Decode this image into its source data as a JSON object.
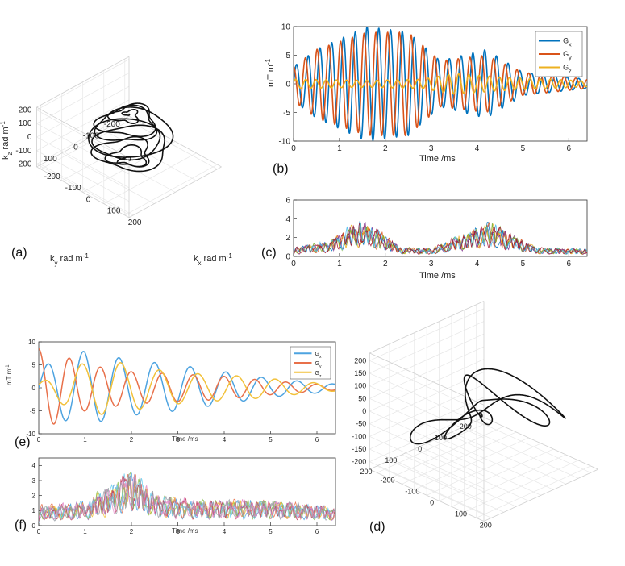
{
  "chart_data": [
    {
      "panel": "(a)",
      "type": "line",
      "subtype": "3d-trajectory",
      "trajectory": "helical spiral",
      "zlabel": "k_z rad m^-1",
      "xlabel": "k_x rad m^-1",
      "ylabel": "k_y rad m^-1",
      "z_ticks": [
        "200",
        "100",
        "0",
        "-100",
        "-200"
      ],
      "y_ticks": [
        "100",
        "0",
        "-100",
        "-200"
      ],
      "x_ticks": [
        "-200",
        "-100",
        "0",
        "100",
        "200"
      ],
      "zlim": [
        -200,
        200
      ],
      "xlim": [
        -200,
        200
      ],
      "ylim": [
        -200,
        200
      ],
      "color": "#111111",
      "grid": true
    },
    {
      "panel": "(b)",
      "type": "line",
      "xlabel": "Time /ms",
      "ylabel": "mT m^-1",
      "xlim": [
        0,
        6.4
      ],
      "ylim": [
        -10,
        10
      ],
      "x_ticks": [
        "0",
        "1",
        "2",
        "3",
        "4",
        "5",
        "6"
      ],
      "y_ticks": [
        "10",
        "5",
        "0",
        "-5",
        "-10"
      ],
      "legend_position": "top-right",
      "series": [
        {
          "name": "G_x",
          "color": "#0072BD",
          "amplitude_envelope": [
            [
              0,
              3
            ],
            [
              0.5,
              6
            ],
            [
              1.6,
              10
            ],
            [
              2.5,
              9
            ],
            [
              3.2,
              4
            ],
            [
              4.2,
              6
            ],
            [
              5.0,
              2
            ],
            [
              6.4,
              0.8
            ]
          ],
          "frequency_khz": 3.9,
          "phase": 0
        },
        {
          "name": "G_y",
          "color": "#D95319",
          "amplitude_envelope": [
            [
              0,
              3
            ],
            [
              0.5,
              6
            ],
            [
              1.6,
              9
            ],
            [
              2.5,
              9
            ],
            [
              3.2,
              4
            ],
            [
              4.2,
              5
            ],
            [
              5.0,
              2
            ],
            [
              6.4,
              0.8
            ]
          ],
          "frequency_khz": 3.9,
          "phase": 1.57
        },
        {
          "name": "G_z",
          "color": "#EDB120",
          "amplitude_envelope": [
            [
              0,
              0.8
            ],
            [
              1.6,
              0.6
            ],
            [
              2.8,
              0.8
            ],
            [
              3.5,
              1.8
            ],
            [
              4.5,
              1.2
            ],
            [
              6.4,
              0.5
            ]
          ],
          "frequency_khz": 4.5,
          "phase": 0.3
        }
      ]
    },
    {
      "panel": "(c)",
      "type": "line",
      "xlabel": "Time /ms",
      "xlim": [
        0,
        6.4
      ],
      "ylim": [
        0,
        6
      ],
      "x_ticks": [
        "0",
        "1",
        "2",
        "3",
        "4",
        "5",
        "6"
      ],
      "y_ticks": [
        "6",
        "4",
        "2",
        "0"
      ],
      "series_count": 7,
      "colors": [
        "#0072BD",
        "#D95319",
        "#EDB120",
        "#7E2F8E",
        "#77AC30",
        "#4DBEEE",
        "#A2142F"
      ],
      "envelope": [
        [
          0,
          1.0
        ],
        [
          0.7,
          1.5
        ],
        [
          1.4,
          3.6
        ],
        [
          1.8,
          3.0
        ],
        [
          2.3,
          1.0
        ],
        [
          3.0,
          0.8
        ],
        [
          3.6,
          2.2
        ],
        [
          4.3,
          3.6
        ],
        [
          4.8,
          2.2
        ],
        [
          5.3,
          0.9
        ],
        [
          6.4,
          0.8
        ]
      ]
    },
    {
      "panel": "(e)",
      "type": "line",
      "xlabel": "Time /ms",
      "ylabel": "mT m^-1",
      "xlim": [
        0,
        6.4
      ],
      "ylim": [
        -10,
        10
      ],
      "x_ticks": [
        "0",
        "1",
        "2",
        "3",
        "4",
        "5",
        "6"
      ],
      "y_ticks": [
        "10",
        "5",
        "0",
        "-5",
        "-10"
      ],
      "legend_position": "top-right",
      "series": [
        {
          "name": "G_x",
          "color": "#4DA3E0",
          "amplitude_envelope": [
            [
              0,
              4
            ],
            [
              0.5,
              7
            ],
            [
              1.0,
              8
            ],
            [
              2.0,
              6
            ],
            [
              3.0,
              5
            ],
            [
              4.0,
              3.5
            ],
            [
              5.0,
              2
            ],
            [
              6.4,
              0.8
            ]
          ],
          "frequency_khz": 1.3,
          "phase": 0
        },
        {
          "name": "G_y",
          "color": "#E8704A",
          "amplitude_envelope": [
            [
              0,
              8.5
            ],
            [
              0.3,
              8
            ],
            [
              1.0,
              5
            ],
            [
              2.0,
              3.5
            ],
            [
              3.0,
              3
            ],
            [
              4.0,
              2.5
            ],
            [
              5.0,
              1.5
            ],
            [
              6.4,
              0.5
            ]
          ],
          "frequency_khz": 1.5,
          "phase": 1.6
        },
        {
          "name": "G_z",
          "color": "#F2C13A",
          "amplitude_envelope": [
            [
              0,
              1
            ],
            [
              0.8,
              5
            ],
            [
              1.5,
              6
            ],
            [
              2.5,
              4
            ],
            [
              3.5,
              3
            ],
            [
              4.5,
              2.5
            ],
            [
              5.5,
              1.5
            ],
            [
              6.4,
              0.7
            ]
          ],
          "frequency_khz": 1.2,
          "phase": 0.8
        }
      ]
    },
    {
      "panel": "(f)",
      "type": "line",
      "xlabel": "Time /ms",
      "xlim": [
        0,
        6.4
      ],
      "ylim": [
        0,
        4.5
      ],
      "x_ticks": [
        "0",
        "1",
        "2",
        "3",
        "4",
        "5",
        "6"
      ],
      "y_ticks": [
        "4",
        "3",
        "2",
        "1",
        "0"
      ],
      "series_count": 9,
      "colors": [
        "#4DA3E0",
        "#E8704A",
        "#F2C13A",
        "#A66BB8",
        "#8CC152",
        "#6FD0F0",
        "#C1435E",
        "#E38AC8",
        "#9AA0A6"
      ],
      "envelope": [
        [
          0,
          1.3
        ],
        [
          1.0,
          1.5
        ],
        [
          1.5,
          2.6
        ],
        [
          2.0,
          3.6
        ],
        [
          2.5,
          2.0
        ],
        [
          3.5,
          1.6
        ],
        [
          4.5,
          1.7
        ],
        [
          5.5,
          1.5
        ],
        [
          6.4,
          1.2
        ]
      ]
    },
    {
      "panel": "(d)",
      "type": "line",
      "subtype": "3d-trajectory",
      "trajectory": "random loops",
      "z_ticks": [
        "200",
        "150",
        "100",
        "50",
        "0",
        "-50",
        "-100",
        "-150",
        "-200"
      ],
      "y_ticks": [
        "200",
        "100",
        "0",
        "-100",
        "-200"
      ],
      "x_ticks": [
        "-200",
        "-100",
        "0",
        "100",
        "200"
      ],
      "zlim": [
        -200,
        200
      ],
      "xlim": [
        -200,
        200
      ],
      "ylim": [
        -200,
        200
      ],
      "color": "#111111",
      "grid": true
    }
  ],
  "labels": {
    "a": "(a)",
    "b": "(b)",
    "c": "(c)",
    "d": "(d)",
    "e": "(e)",
    "f": "(f)"
  },
  "text": {
    "kz": "k",
    "kz_sub": "z",
    "kz_rest": " rad m",
    "kz_sup": "-1",
    "kx": "k",
    "kx_sub": "x",
    "kx_rest": " rad m",
    "kx_sup": "-1",
    "ky": "k",
    "ky_sub": "y",
    "ky_rest": " rad m",
    "ky_sup": "-1",
    "mT": "mT m",
    "mT_sup": "-1",
    "time_b": "Time /ms",
    "time_c": "Time /ms",
    "time_e": "Time /ms",
    "time_f": "Time /ms",
    "G": "G",
    "x": "x",
    "y": "y",
    "z": "z"
  }
}
